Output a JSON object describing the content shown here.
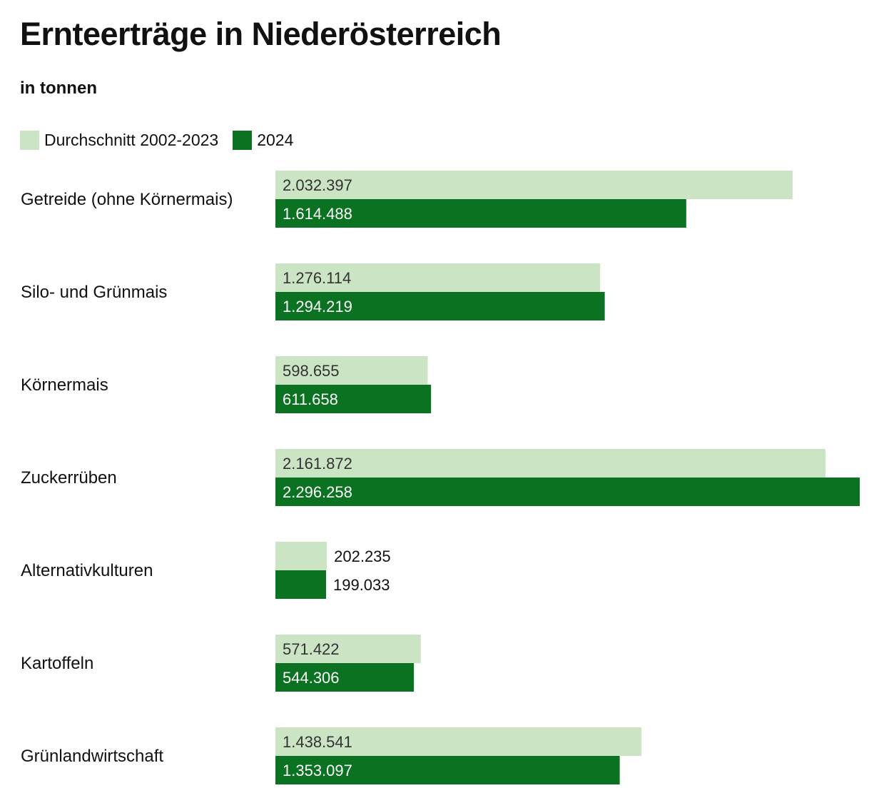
{
  "header": {
    "title": "Ernteerträge in Niederösterreich",
    "subtitle": "in tonnen"
  },
  "legend": {
    "items": [
      {
        "label": "Durchschnitt 2002-2023",
        "color": "#cbe4c4"
      },
      {
        "label": "2024",
        "color": "#0a7220"
      }
    ]
  },
  "chart_data": {
    "type": "bar",
    "orientation": "horizontal",
    "title": "Ernteerträge in Niederösterreich",
    "unit": "in tonnen",
    "categories": [
      "Getreide (ohne Körnermais)",
      "Silo- und Grünmais",
      "Körnermais",
      "Zuckerrüben",
      "Alternativkulturen",
      "Kartoffeln",
      "Grünlandwirtschaft"
    ],
    "series": [
      {
        "name": "Durchschnitt 2002-2023",
        "color": "#cbe4c4",
        "values": [
          2032397,
          1276114,
          598655,
          2161872,
          202235,
          571422,
          1438541
        ],
        "labels": [
          "2.032.397",
          "1.276.114",
          "598.655",
          "2.161.872",
          "202.235",
          "571.422",
          "1.438.541"
        ]
      },
      {
        "name": "2024",
        "color": "#0a7220",
        "values": [
          1614488,
          1294219,
          611658,
          2296258,
          199033,
          544306,
          1353097
        ],
        "labels": [
          "1.614.488",
          "1.294.219",
          "611.658",
          "2.296.258",
          "199.033",
          "544.306",
          "1.353.097"
        ]
      }
    ],
    "xlim": [
      0,
      2296258
    ],
    "grid": false,
    "legend_position": "top-left"
  }
}
